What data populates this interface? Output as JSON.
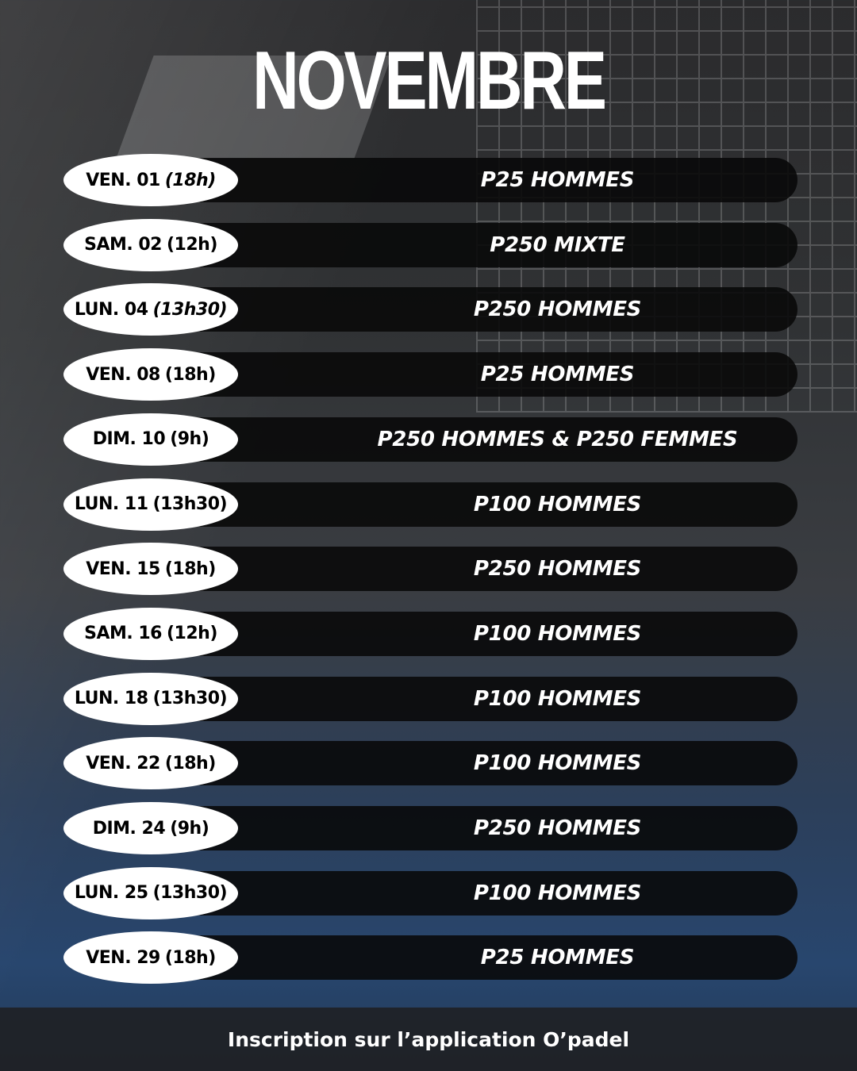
{
  "title": "NOVEMBRE",
  "events": [
    {
      "day": "VEN. 01",
      "time": "(18h)",
      "time_italic": true,
      "event": "P25 HOMMES"
    },
    {
      "day": "SAM. 02",
      "time": "(12h)",
      "time_italic": false,
      "event": "P250 MIXTE"
    },
    {
      "day": "LUN. 04",
      "time": "(13h30)",
      "time_italic": true,
      "event": "P250 HOMMES"
    },
    {
      "day": "VEN. 08",
      "time": "(18h)",
      "time_italic": false,
      "event": "P25 HOMMES"
    },
    {
      "day": "DIM. 10",
      "time": "(9h)",
      "time_italic": false,
      "event": "P250 HOMMES & P250 FEMMES"
    },
    {
      "day": "LUN. 11",
      "time": "(13h30)",
      "time_italic": false,
      "event": "P100 HOMMES"
    },
    {
      "day": "VEN. 15",
      "time": "(18h)",
      "time_italic": false,
      "event": "P250 HOMMES"
    },
    {
      "day": "SAM. 16",
      "time": "(12h)",
      "time_italic": false,
      "event": "P100 HOMMES"
    },
    {
      "day": "LUN. 18",
      "time": "(13h30)",
      "time_italic": false,
      "event": "P100 HOMMES"
    },
    {
      "day": "VEN. 22",
      "time": "(18h)",
      "time_italic": false,
      "event": "P100 HOMMES"
    },
    {
      "day": "DIM. 24",
      "time": "(9h)",
      "time_italic": false,
      "event": "P250 HOMMES"
    },
    {
      "day": "LUN. 25",
      "time": "(13h30)",
      "time_italic": false,
      "event": "P100 HOMMES"
    },
    {
      "day": "VEN. 29",
      "time": "(18h)",
      "time_italic": false,
      "event": "P25 HOMMES"
    }
  ],
  "footer": "Inscription sur l’application O’padel"
}
